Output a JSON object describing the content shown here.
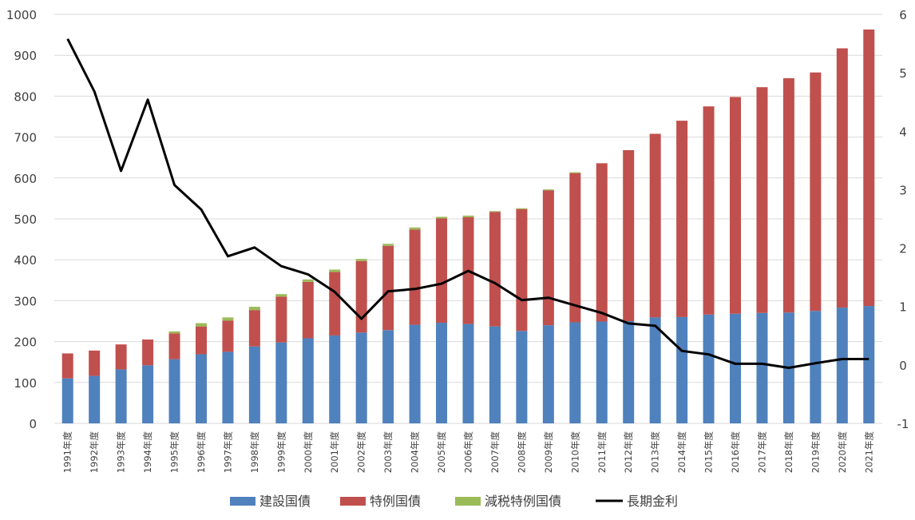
{
  "chart_data": {
    "type": "bar",
    "stacked": true,
    "combo_line_on_secondary_axis": true,
    "title": "",
    "categories": [
      "1991年度",
      "1992年度",
      "1993年度",
      "1994年度",
      "1995年度",
      "1996年度",
      "1997年度",
      "1998年度",
      "1999年度",
      "2000年度",
      "2001年度",
      "2002年度",
      "2003年度",
      "2004年度",
      "2005年度",
      "2006年度",
      "2007年度",
      "2008年度",
      "2009年度",
      "2010年度",
      "2011年度",
      "2012年度",
      "2013年度",
      "2014年度",
      "2015年度",
      "2016年度",
      "2017年度",
      "2018年度",
      "2019年度",
      "2020年度",
      "2021年度"
    ],
    "series": [
      {
        "name": "建設国債",
        "kind": "bar",
        "axis": "left",
        "color": "#4f81bd",
        "values": [
          110,
          116,
          132,
          142,
          157,
          169,
          175,
          188,
          198,
          208,
          215,
          222,
          228,
          241,
          246,
          243,
          237,
          226,
          240,
          247,
          249,
          250,
          259,
          260,
          266,
          268,
          270,
          271,
          275,
          283,
          287
        ]
      },
      {
        "name": "特例国債",
        "kind": "bar",
        "axis": "left",
        "color": "#c0504d",
        "values": [
          61,
          62,
          61,
          63,
          63,
          68,
          76,
          89,
          112,
          138,
          155,
          175,
          206,
          233,
          255,
          261,
          280,
          298,
          330,
          365,
          387,
          418,
          449,
          480,
          509,
          530,
          552,
          573,
          583,
          634,
          676
        ]
      },
      {
        "name": "減税特例国債",
        "kind": "bar",
        "axis": "left",
        "color": "#9bbb59",
        "values": [
          0,
          0,
          0,
          0,
          5,
          8,
          8,
          8,
          6,
          6,
          6,
          5,
          5,
          5,
          4,
          4,
          2,
          2,
          2,
          2,
          0,
          0,
          0,
          0,
          0,
          0,
          0,
          0,
          0,
          0,
          0
        ]
      },
      {
        "name": "長期金利",
        "kind": "line",
        "axis": "right",
        "color": "#000000",
        "values": [
          5.58,
          4.68,
          3.32,
          4.54,
          3.08,
          2.66,
          1.86,
          2.01,
          1.69,
          1.55,
          1.25,
          0.79,
          1.26,
          1.3,
          1.39,
          1.61,
          1.4,
          1.11,
          1.15,
          1.02,
          0.89,
          0.71,
          0.67,
          0.24,
          0.18,
          0.02,
          0.02,
          -0.05,
          0.03,
          0.1,
          0.1
        ]
      }
    ],
    "y_left": {
      "min": 0,
      "max": 1000,
      "step": 100,
      "ticks": [
        "0",
        "100",
        "200",
        "300",
        "400",
        "500",
        "600",
        "700",
        "800",
        "900",
        "1000"
      ]
    },
    "y_right": {
      "min": -1,
      "max": 6,
      "step": 1,
      "ticks": [
        "-1",
        "0",
        "1",
        "2",
        "3",
        "4",
        "5",
        "6"
      ]
    },
    "grid": true,
    "legend_position": "bottom"
  }
}
